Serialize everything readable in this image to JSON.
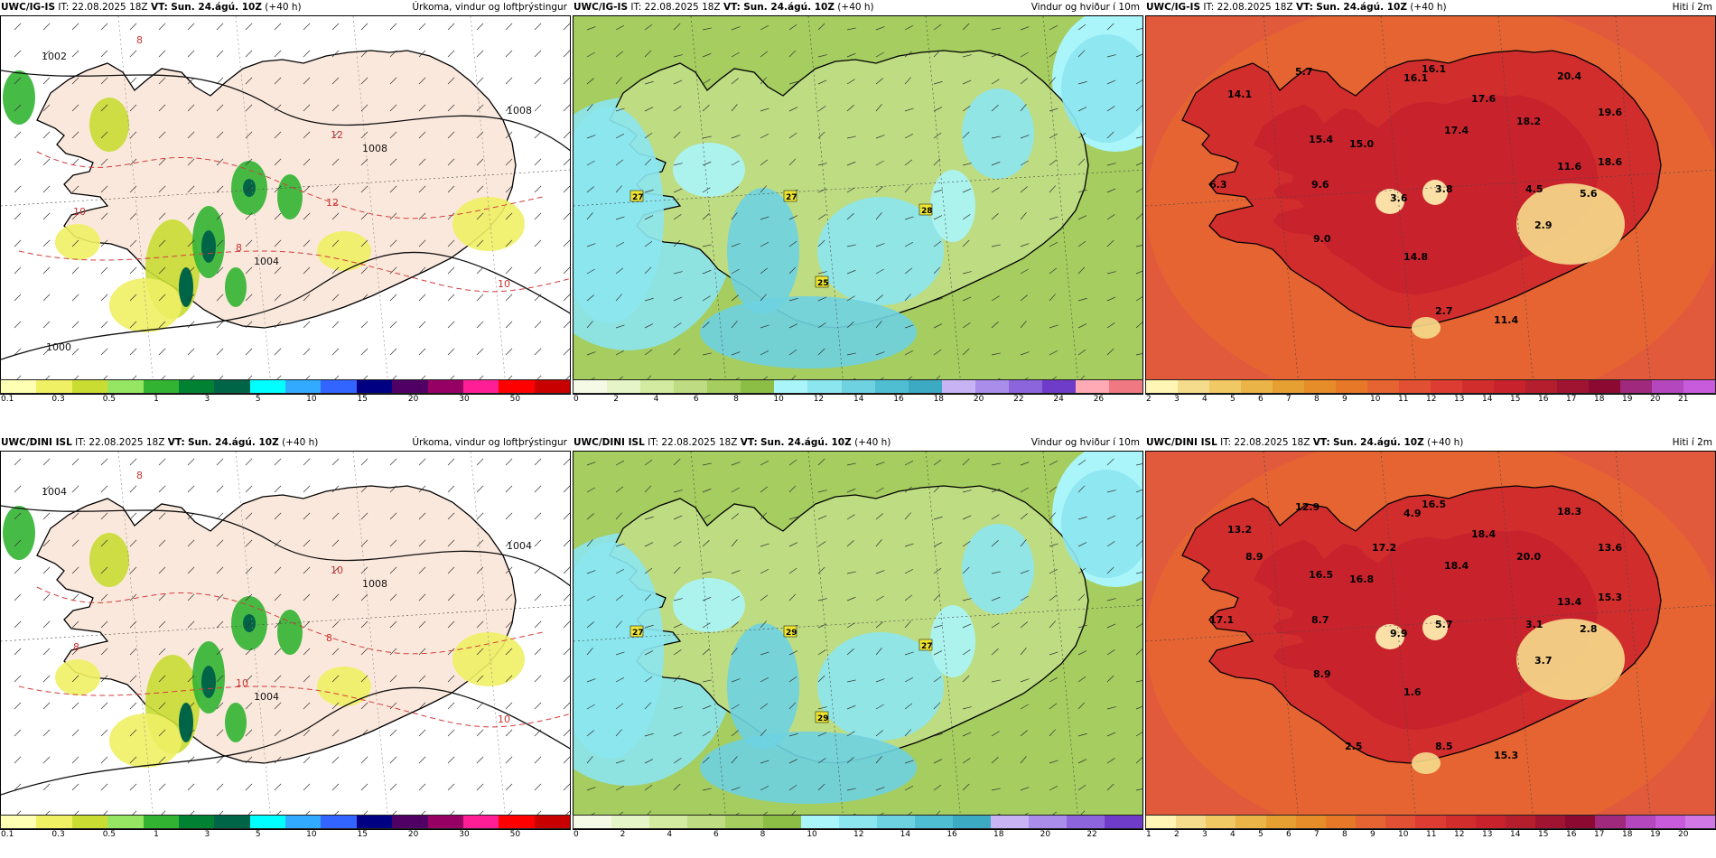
{
  "panels": [
    {
      "id": "p1",
      "model": "UWC/IG-IS",
      "it_label": "IT:",
      "it_value": "22.08.2025 18Z",
      "vt_label": "VT:",
      "vt_value": "Sun. 24.ágú. 10Z",
      "lead": "(+40 h)",
      "title": "Úrkoma, vindur og loftþrýstingur",
      "scale_colors": [
        "#ffffb4",
        "#f0f064",
        "#c8dc32",
        "#96e664",
        "#32b432",
        "#008232",
        "#006446",
        "#00ffff",
        "#32aaff",
        "#3264ff",
        "#000082",
        "#500064",
        "#960064",
        "#ff1e96",
        "#ff0000",
        "#c80000"
      ],
      "ticks": [
        "0.1",
        "0.3",
        "0.5",
        "1",
        "3",
        "5",
        "10",
        "15",
        "20",
        "30",
        "50"
      ],
      "isobars": [
        "1002",
        "1008",
        "1008",
        "1004",
        "1000"
      ],
      "isotherms": [
        "8",
        "12",
        "12",
        "10",
        "8",
        "10"
      ]
    },
    {
      "id": "p2",
      "model": "UWC/IG-IS",
      "it_label": "IT:",
      "it_value": "22.08.2025 18Z",
      "vt_label": "VT:",
      "vt_value": "Sun. 24.ágú. 10Z",
      "lead": "(+40 h)",
      "title": "Vindur og hviður í 10m",
      "scale_colors": [
        "#f5fae6",
        "#e6f5c8",
        "#d2eba0",
        "#bedc82",
        "#a5cd5f",
        "#8cbe46",
        "#aaf5fa",
        "#8ce6f0",
        "#6ed2e1",
        "#50bed2",
        "#3caac3",
        "#c8b4f5",
        "#aa8ceb",
        "#8c64dc",
        "#6e3cc8",
        "#ffaab4",
        "#f07882"
      ],
      "ticks": [
        "0",
        "2",
        "4",
        "6",
        "8",
        "10",
        "12",
        "14",
        "16",
        "18",
        "20",
        "22",
        "24",
        "26"
      ],
      "gusts": [
        "27",
        "27",
        "28",
        "25"
      ]
    },
    {
      "id": "p3",
      "model": "UWC/IG-IS",
      "it_label": "IT:",
      "it_value": "22.08.2025 18Z",
      "vt_label": "VT:",
      "vt_value": "Sun. 24.ágú. 10Z",
      "lead": "(+40 h)",
      "title": "Hiti í 2m",
      "scale_colors": [
        "#fff5b4",
        "#f5dc8c",
        "#f0c864",
        "#ebb446",
        "#e6a032",
        "#e68c28",
        "#e67828",
        "#e66432",
        "#e15032",
        "#dc3c32",
        "#d22d2d",
        "#c8232d",
        "#b41e2d",
        "#a01432",
        "#8c0a32",
        "#a0287d",
        "#b446be",
        "#c85adc"
      ],
      "ticks": [
        "2",
        "3",
        "4",
        "5",
        "6",
        "7",
        "8",
        "9",
        "10",
        "11",
        "12",
        "13",
        "14",
        "15",
        "16",
        "17",
        "18",
        "19",
        "20",
        "21"
      ],
      "temps": [
        "5.7",
        "16.1",
        "16.1",
        "17.6",
        "20.4",
        "14.1",
        "19.6",
        "18.2",
        "17.4",
        "15.4",
        "15.0",
        "18.6",
        "11.6",
        "6.3",
        "9.6",
        "3.6",
        "3.8",
        "4.5",
        "5.6",
        "2.9",
        "9.0",
        "14.8",
        "2.7",
        "11.4"
      ]
    },
    {
      "id": "p4",
      "model": "UWC/DINI ISL",
      "it_label": "IT:",
      "it_value": "22.08.2025 18Z",
      "vt_label": "VT:",
      "vt_value": "Sun. 24.ágú. 10Z",
      "lead": "(+40 h)",
      "title": "Úrkoma, vindur og loftþrýstingur",
      "scale_colors": [
        "#ffffb4",
        "#f0f064",
        "#c8dc32",
        "#96e664",
        "#32b432",
        "#008232",
        "#006446",
        "#00ffff",
        "#32aaff",
        "#3264ff",
        "#000082",
        "#500064",
        "#960064",
        "#ff1e96",
        "#ff0000",
        "#c80000"
      ],
      "ticks": [
        "0.1",
        "0.3",
        "0.5",
        "1",
        "3",
        "5",
        "10",
        "15",
        "20",
        "30",
        "50"
      ],
      "isobars": [
        "1004",
        "1004",
        "1008",
        "1004"
      ],
      "isotherms": [
        "8",
        "10",
        "8",
        "10",
        "10",
        "8"
      ]
    },
    {
      "id": "p5",
      "model": "UWC/DINI ISL",
      "it_label": "IT:",
      "it_value": "22.08.2025 18Z",
      "vt_label": "VT:",
      "vt_value": "Sun. 24.ágú. 10Z",
      "lead": "(+40 h)",
      "title": "Vindur og hviður í 10m",
      "scale_colors": [
        "#f5fae6",
        "#e6f5c8",
        "#d2eba0",
        "#bedc82",
        "#a5cd5f",
        "#8cbe46",
        "#aaf5fa",
        "#8ce6f0",
        "#6ed2e1",
        "#50bed2",
        "#3caac3",
        "#c8b4f5",
        "#aa8ceb",
        "#8c64dc",
        "#6e3cc8"
      ],
      "ticks": [
        "0",
        "2",
        "4",
        "6",
        "8",
        "10",
        "12",
        "14",
        "16",
        "18",
        "20",
        "22"
      ],
      "gusts": [
        "27",
        "29",
        "27",
        "29"
      ]
    },
    {
      "id": "p6",
      "model": "UWC/DINI ISL",
      "it_label": "IT:",
      "it_value": "22.08.2025 18Z",
      "vt_label": "VT:",
      "vt_value": "Sun. 24.ágú. 10Z",
      "lead": "(+40 h)",
      "title": "Hiti í 2m",
      "scale_colors": [
        "#fff5b4",
        "#f5dc8c",
        "#f0c864",
        "#ebb446",
        "#e6a032",
        "#e68c28",
        "#e67828",
        "#e66432",
        "#e15032",
        "#dc3c32",
        "#d22d2d",
        "#c8232d",
        "#b41e2d",
        "#a01432",
        "#8c0a32",
        "#a0287d",
        "#b446be",
        "#c85adc",
        "#d278e6"
      ],
      "ticks": [
        "1",
        "2",
        "3",
        "4",
        "5",
        "6",
        "7",
        "8",
        "9",
        "10",
        "11",
        "12",
        "13",
        "14",
        "15",
        "16",
        "17",
        "18",
        "19",
        "20"
      ],
      "temps": [
        "12.9",
        "4.9",
        "16.5",
        "18.4",
        "18.3",
        "13.2",
        "13.6",
        "20.0",
        "18.4",
        "16.5",
        "16.8",
        "15.3",
        "13.4",
        "17.1",
        "8.7",
        "9.9",
        "5.7",
        "3.1",
        "2.8",
        "3.7",
        "8.9",
        "1.6",
        "8.5",
        "15.3",
        "17.2",
        "8.9",
        "2.5"
      ]
    }
  ]
}
